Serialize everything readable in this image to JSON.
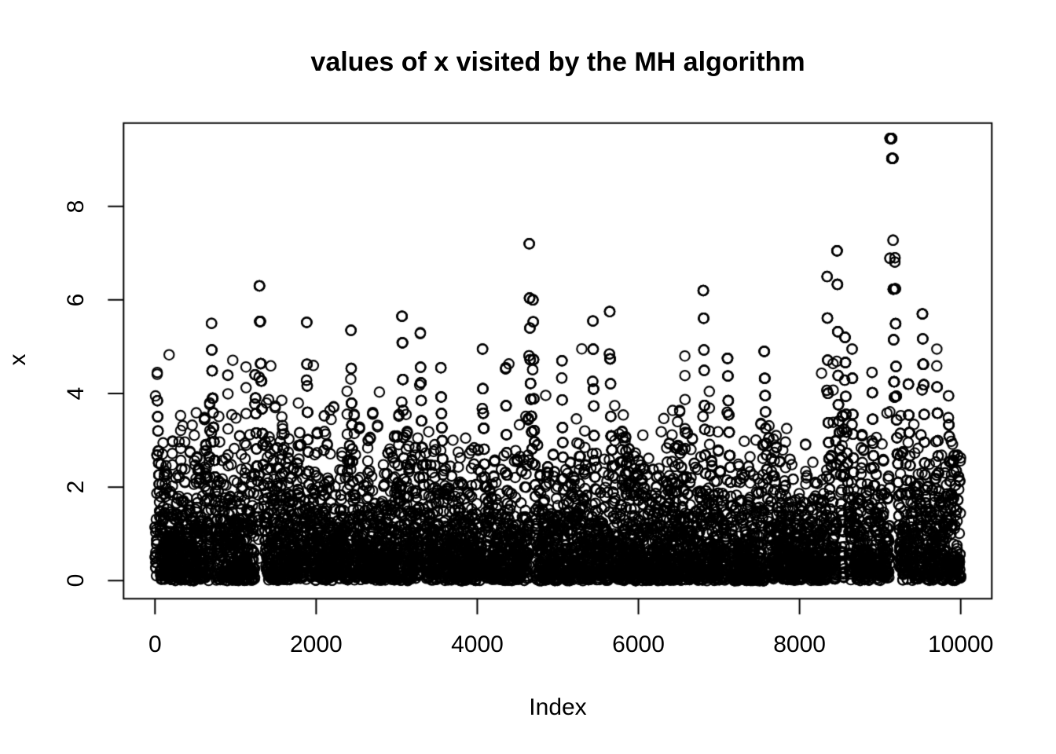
{
  "page": {
    "background": "#ffffff"
  },
  "chart_data": {
    "type": "scatter",
    "title": "values of x visited by the MH algorithm",
    "xlabel": "Index",
    "ylabel": "x",
    "x_tick_values": [
      0,
      2000,
      4000,
      6000,
      8000,
      10000
    ],
    "x_tick_labels": [
      "0",
      "2000",
      "4000",
      "6000",
      "8000",
      "10000"
    ],
    "y_tick_values": [
      0,
      2,
      4,
      6,
      8
    ],
    "y_tick_labels": [
      "0",
      "2",
      "4",
      "6",
      "8"
    ],
    "xlim": [
      -399,
      10399
    ],
    "ylim": [
      -0.386,
      9.786
    ],
    "grid": false,
    "legend": null,
    "n_points": 10000,
    "marker": {
      "shape": "open-circle",
      "radius_px": 6.2,
      "stroke_px": 2.1,
      "color": "#000000"
    },
    "generator": {
      "kind": "metropolis-hastings-trace",
      "target_distribution": "exponential",
      "rate": 1.18,
      "clip": 5.0,
      "thin": [
        [
          3.0,
          0.75
        ],
        [
          3.5,
          0.75
        ],
        [
          4.0,
          0.7
        ]
      ],
      "hold_prob": 0.32,
      "string_threshold": 2.6,
      "string_prob": 0.22,
      "wave_amp1": 0.07,
      "wave_freq1": 0.004,
      "wave_amp2": 0.045,
      "wave_freq2": 0.0013,
      "seed": 12
    },
    "notable_excursions": [
      {
        "index": 30,
        "peak": 4.45
      },
      {
        "index": 700,
        "peak": 5.5
      },
      {
        "index": 1240,
        "peak": 4.4
      },
      {
        "index": 1290,
        "peak": 6.3
      },
      {
        "index": 1880,
        "peak": 5.52
      },
      {
        "index": 2430,
        "peak": 5.35
      },
      {
        "index": 3060,
        "peak": 5.65
      },
      {
        "index": 3290,
        "peak": 5.3
      },
      {
        "index": 3550,
        "peak": 4.55
      },
      {
        "index": 4060,
        "peak": 4.95
      },
      {
        "index": 4350,
        "peak": 4.55
      },
      {
        "index": 4640,
        "peak": 7.2
      },
      {
        "index": 4690,
        "peak": 6.0
      },
      {
        "index": 5050,
        "peak": 4.7
      },
      {
        "index": 5430,
        "peak": 5.55
      },
      {
        "index": 5640,
        "peak": 5.75
      },
      {
        "index": 6800,
        "peak": 6.2
      },
      {
        "index": 7100,
        "peak": 4.75
      },
      {
        "index": 7560,
        "peak": 4.9
      },
      {
        "index": 8340,
        "peak": 6.5
      },
      {
        "index": 8460,
        "peak": 7.05
      },
      {
        "index": 8560,
        "peak": 5.2
      },
      {
        "index": 8650,
        "peak": 4.95
      },
      {
        "index": 8900,
        "peak": 4.45
      },
      {
        "index": 9120,
        "peak": 9.45,
        "flat_top": true
      },
      {
        "index": 9185,
        "peak": 6.9
      },
      {
        "index": 9350,
        "peak": 4.2
      },
      {
        "index": 9520,
        "peak": 5.7
      },
      {
        "index": 9700,
        "peak": 4.95
      },
      {
        "index": 9850,
        "peak": 3.95
      }
    ]
  }
}
